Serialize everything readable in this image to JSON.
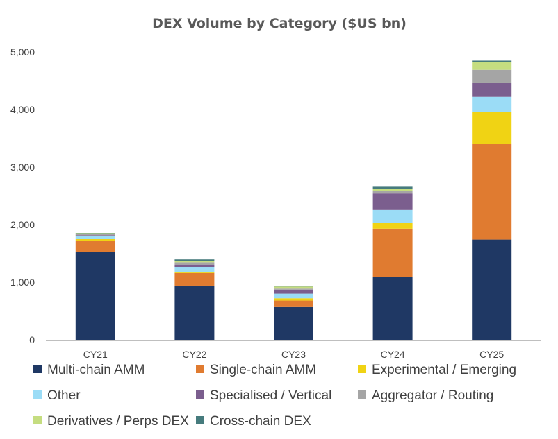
{
  "chart_data": {
    "type": "bar",
    "stacked": true,
    "title": "DEX Volume by Category ($US bn)",
    "xlabel": "",
    "ylabel": "",
    "ylim": [
      0,
      5000
    ],
    "yticks": [
      0,
      1000,
      2000,
      3000,
      4000,
      5000
    ],
    "ytick_labels": [
      "0",
      "1,000",
      "2,000",
      "3,000",
      "4,000",
      "5,000"
    ],
    "grid": false,
    "legend_position": "bottom",
    "categories": [
      "CY21",
      "CY22",
      "CY23",
      "CY24",
      "CY25"
    ],
    "series": [
      {
        "name": "Multi-chain AMM",
        "color": "#1f3864",
        "values": [
          1520,
          940,
          580,
          1085,
          1740
        ]
      },
      {
        "name": "Single-chain AMM",
        "color": "#e07b30",
        "values": [
          200,
          220,
          100,
          845,
          1660
        ]
      },
      {
        "name": "Experimental / Emerging",
        "color": "#f0d314",
        "values": [
          30,
          20,
          40,
          95,
          560
        ]
      },
      {
        "name": "Other",
        "color": "#9bdcf6",
        "values": [
          55,
          85,
          80,
          230,
          260
        ]
      },
      {
        "name": "Specialised / Vertical",
        "color": "#7b5e8e",
        "values": [
          10,
          40,
          70,
          285,
          250
        ]
      },
      {
        "name": "Aggregator / Routing",
        "color": "#a5a5a5",
        "values": [
          20,
          40,
          30,
          45,
          220
        ]
      },
      {
        "name": "Derivatives / Perps DEX",
        "color": "#c5dd80",
        "values": [
          15,
          20,
          25,
          30,
          130
        ]
      },
      {
        "name": "Cross-chain DEX",
        "color": "#467b7d",
        "values": [
          5,
          30,
          10,
          55,
          30
        ]
      }
    ]
  }
}
